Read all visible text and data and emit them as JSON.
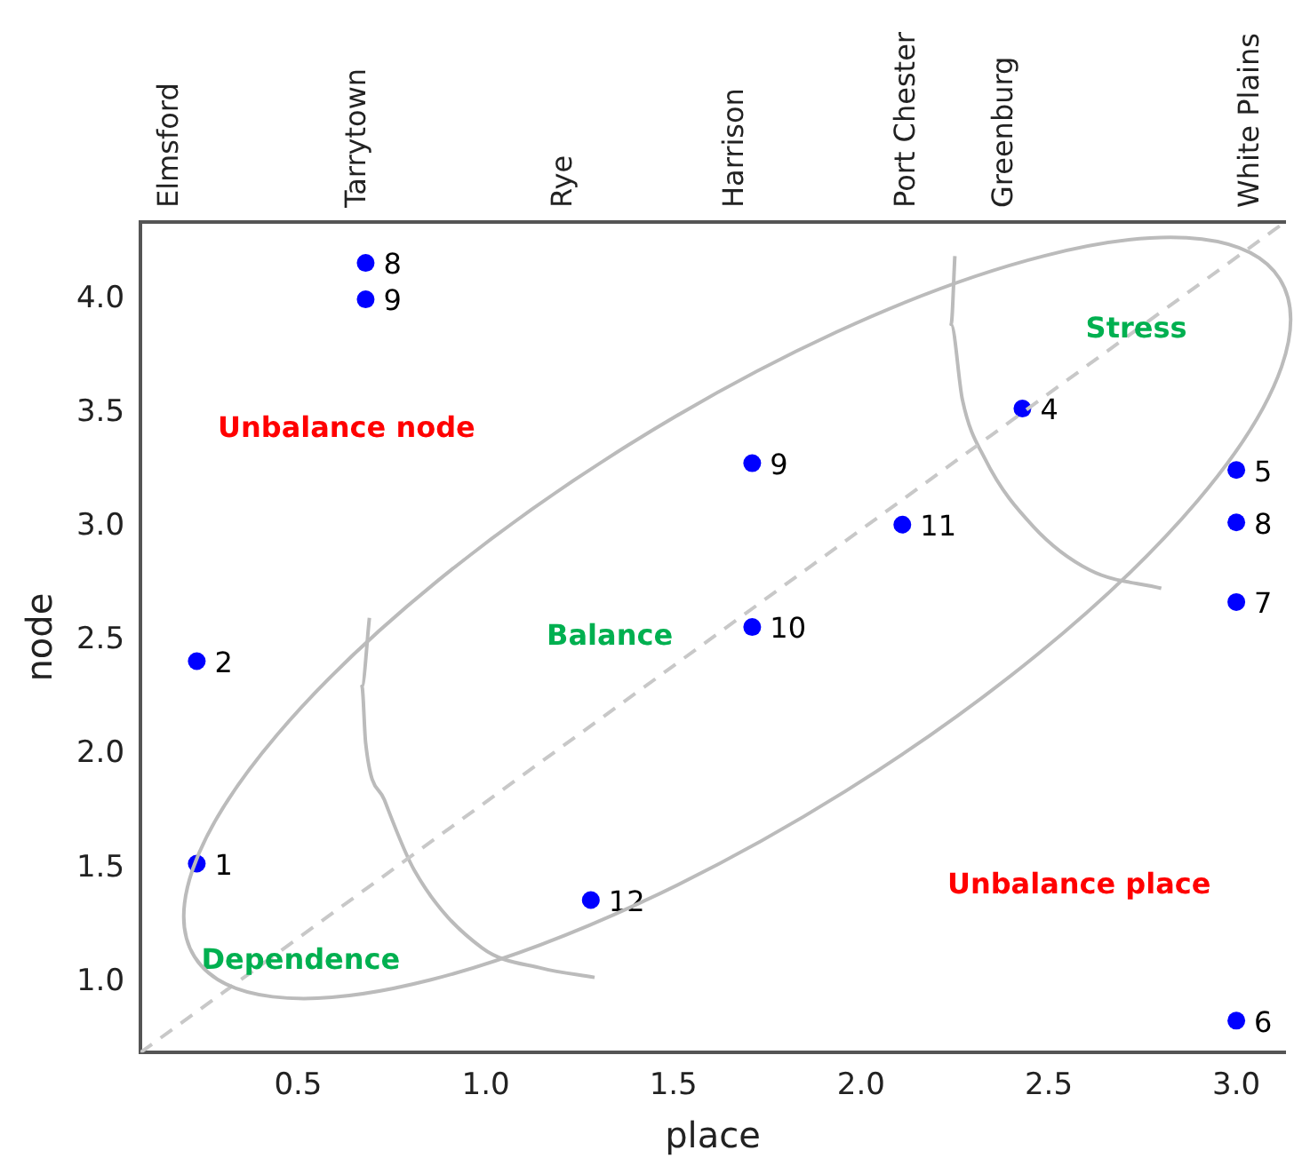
{
  "chart_data": {
    "type": "scatter",
    "xlabel": "place",
    "ylabel": "node",
    "marker": "circle",
    "grid": false,
    "legend": false,
    "xlim": [
      0.08,
      3.13
    ],
    "ylim": [
      0.69,
      4.34
    ],
    "xticks": [
      {
        "value": 0.5,
        "label": "0.5"
      },
      {
        "value": 1,
        "label": "1.0"
      },
      {
        "value": 1.5,
        "label": "1.5"
      },
      {
        "value": 2,
        "label": "2.0"
      },
      {
        "value": 2.5,
        "label": "2.5"
      },
      {
        "value": 3,
        "label": "3.0"
      }
    ],
    "yticks": [
      {
        "value": 1,
        "label": "1.0"
      },
      {
        "value": 1.5,
        "label": "1.5"
      },
      {
        "value": 2,
        "label": "2.0"
      },
      {
        "value": 2.5,
        "label": "2.5"
      },
      {
        "value": 3,
        "label": "3.0"
      },
      {
        "value": 3.5,
        "label": "3.5"
      },
      {
        "value": 4,
        "label": "4.0"
      }
    ],
    "series": [
      {
        "type": "line",
        "color": "#c8c8c8",
        "line_style": "dashed",
        "marker": "none",
        "x": [
          0.08,
          3.13
        ],
        "values": [
          0.69,
          4.34
        ]
      },
      {
        "type": "line",
        "color": "#bbbbbb",
        "line_style": "solid",
        "marker": "none",
        "x": [
          0.69,
          0.67,
          0.68,
          0.73,
          0.81,
          0.99,
          1.15,
          1.29
        ],
        "values": [
          2.6,
          2.3,
          2.05,
          1.8,
          1.49,
          1.15,
          1.06,
          1.02
        ]
      },
      {
        "type": "line",
        "color": "#bbbbbb",
        "line_style": "solid",
        "marker": "none",
        "x": [
          2.25,
          2.24,
          2.27,
          2.33,
          2.46,
          2.61,
          2.8
        ],
        "values": [
          4.19,
          3.89,
          3.56,
          3.3,
          3.0,
          2.81,
          2.73
        ]
      },
      {
        "color": "#0000ff",
        "x": [
          0.68,
          0.68,
          0.23,
          0.23,
          1.28,
          1.71,
          1.71,
          2.11,
          2.43,
          3.0,
          3.0,
          3.0,
          3.0
        ],
        "values": [
          4.16,
          4.0,
          2.41,
          1.52,
          1.36,
          3.28,
          2.56,
          3.01,
          3.52,
          3.25,
          3.02,
          2.67,
          0.83
        ]
      }
    ],
    "annotations": [
      "Unbalance node",
      "Balance",
      "Stress",
      "Dependence",
      "Unbalance place",
      {
        "text": "8",
        "x": 0.68,
        "y": 4.16
      },
      {
        "text": "9",
        "x": 0.68,
        "y": 4.0
      },
      {
        "text": "2",
        "x": 0.23,
        "y": 2.41
      },
      {
        "text": "1",
        "x": 0.23,
        "y": 1.52
      },
      {
        "text": "12",
        "x": 1.28,
        "y": 1.36
      },
      {
        "text": "9",
        "x": 1.71,
        "y": 3.28
      },
      {
        "text": "10",
        "x": 1.71,
        "y": 2.56
      },
      {
        "text": "11",
        "x": 2.11,
        "y": 3.01
      },
      {
        "text": "4",
        "x": 2.43,
        "y": 3.52
      },
      {
        "text": "5",
        "x": 3.0,
        "y": 3.25
      },
      {
        "text": "8",
        "x": 3.0,
        "y": 3.02
      },
      {
        "text": "7",
        "x": 3.0,
        "y": 2.67
      },
      {
        "text": "6",
        "x": 3.0,
        "y": 0.83
      },
      "Elmsford",
      "Tarrytown",
      "Rye",
      "Harrison",
      "Port Chester",
      "Greenburg",
      "White Plains"
    ]
  }
}
